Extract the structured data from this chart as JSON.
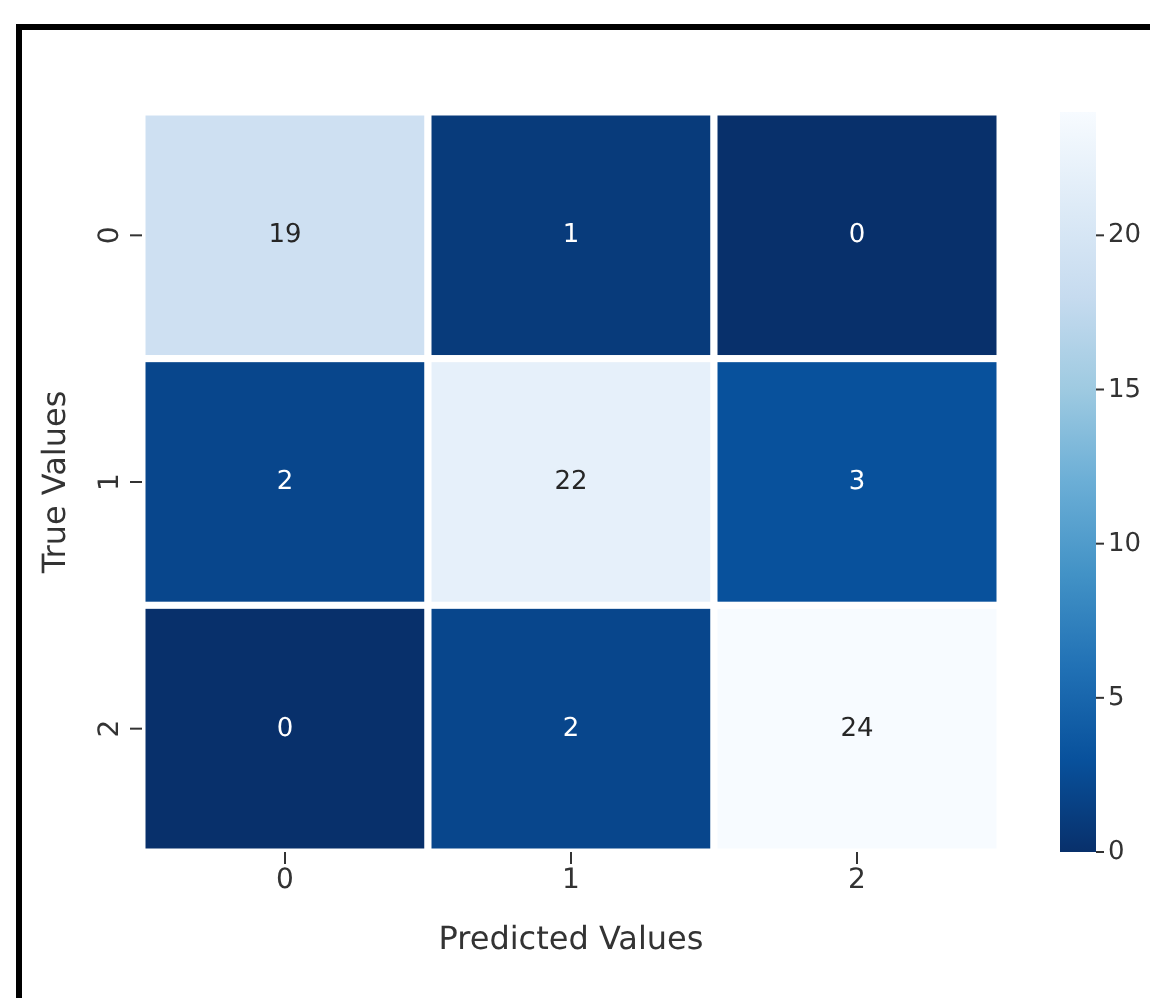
{
  "chart_data": {
    "type": "heatmap",
    "xlabel": "Predicted Values",
    "ylabel": "True Values",
    "categories": [
      "0",
      "1",
      "2"
    ],
    "y_categories": [
      "0",
      "1",
      "2"
    ],
    "cells": [
      [
        19,
        1,
        0
      ],
      [
        2,
        22,
        3
      ],
      [
        0,
        2,
        24
      ]
    ],
    "clim": [
      0,
      24
    ],
    "cticks": [
      0,
      5,
      10,
      15,
      20
    ],
    "data_labels": true
  }
}
